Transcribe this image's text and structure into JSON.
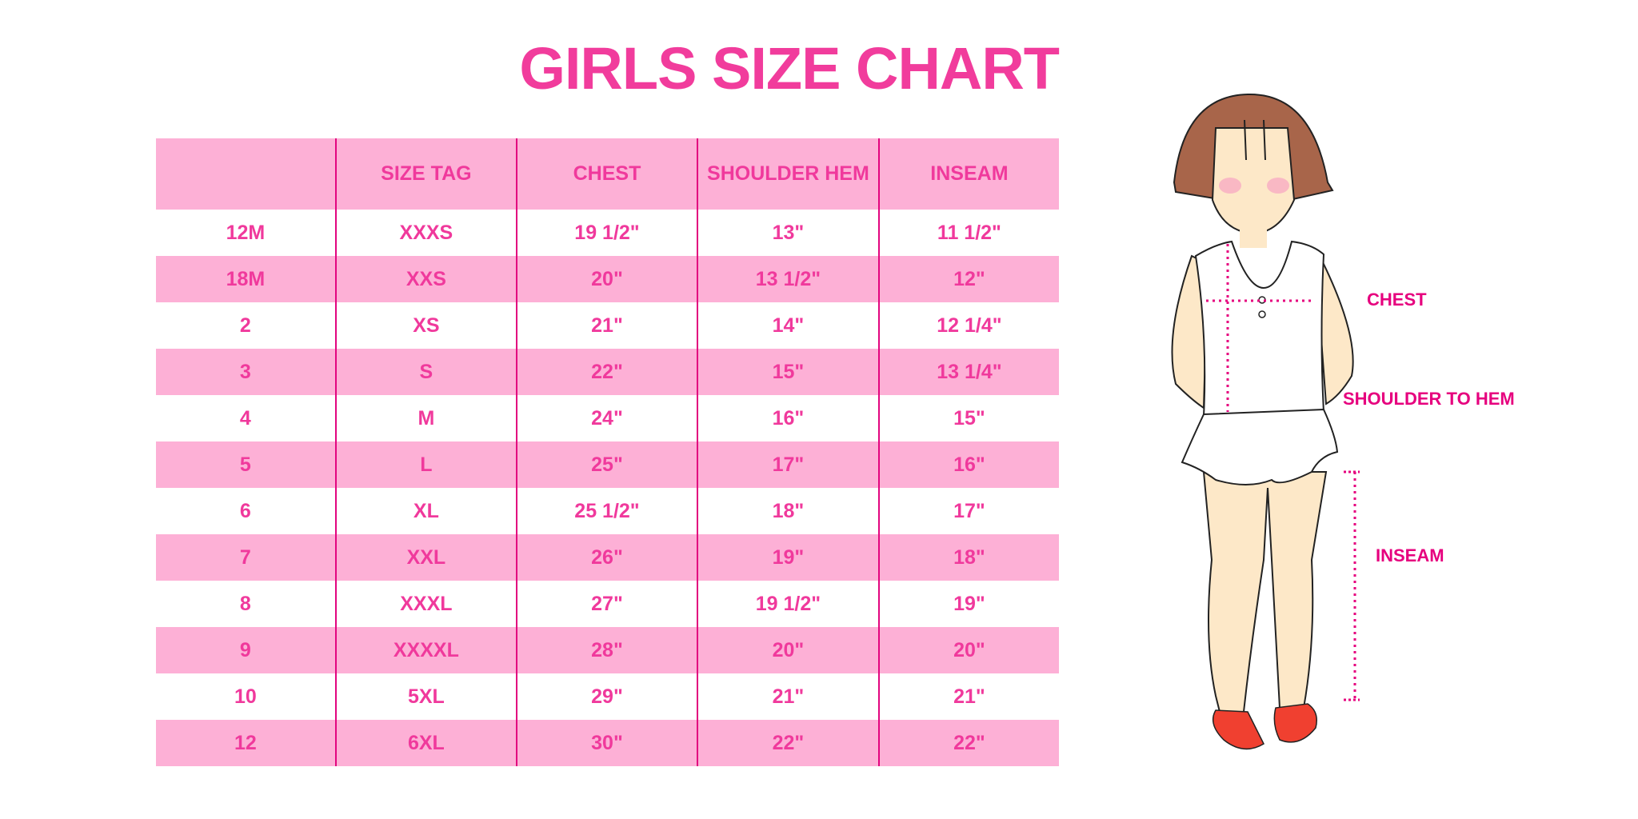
{
  "title": "GIRLS SIZE CHART",
  "table": {
    "headers": [
      "",
      "SIZE TAG",
      "CHEST",
      "SHOULDER HEM",
      "INSEAM"
    ],
    "rows": [
      [
        "12M",
        "XXXS",
        "19 1/2\"",
        "13\"",
        "11 1/2\""
      ],
      [
        "18M",
        "XXS",
        "20\"",
        "13 1/2\"",
        "12\""
      ],
      [
        "2",
        "XS",
        "21\"",
        "14\"",
        "12 1/4\""
      ],
      [
        "3",
        "S",
        "22\"",
        "15\"",
        "13 1/4\""
      ],
      [
        "4",
        "M",
        "24\"",
        "16\"",
        "15\""
      ],
      [
        "5",
        "L",
        "25\"",
        "17\"",
        "16\""
      ],
      [
        "6",
        "XL",
        "25 1/2\"",
        "18\"",
        "17\""
      ],
      [
        "7",
        "XXL",
        "26\"",
        "19\"",
        "18\""
      ],
      [
        "8",
        "XXXL",
        "27\"",
        "19 1/2\"",
        "19\""
      ],
      [
        "9",
        "XXXXL",
        "28\"",
        "20\"",
        "20\""
      ],
      [
        "10",
        "5XL",
        "29\"",
        "21\"",
        "21\""
      ],
      [
        "12",
        "6XL",
        "30\"",
        "22\"",
        "22\""
      ]
    ]
  },
  "figure": {
    "labels": {
      "chest": "CHEST",
      "shoulder_to_hem": "SHOULDER TO HEM",
      "inseam": "INSEAM"
    }
  },
  "colors": {
    "accent": "#f0399c",
    "header_bg": "#fdb0d6",
    "divider": "#e2057f",
    "hair": "#a8654a",
    "skin": "#fde8c8",
    "shoes": "#f04030"
  }
}
